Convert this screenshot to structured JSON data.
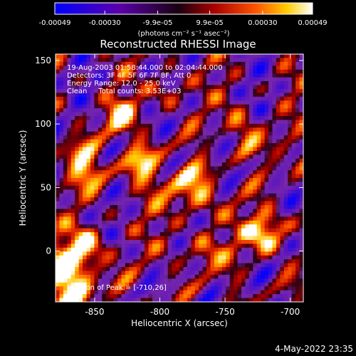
{
  "colorbar": {
    "tick_labels": [
      "-0.00049",
      "-0.00030",
      "-9.9e-05",
      "9.9e-05",
      "0.00030",
      "0.00049"
    ],
    "tick_values": [
      -0.00049,
      -0.0003,
      -9.9e-05,
      9.9e-05,
      0.0003,
      0.00049
    ],
    "range": [
      -0.00049,
      0.00049
    ],
    "units": "(photons cm⁻² s⁻¹ asec⁻²)",
    "colors": [
      "#0000ff",
      "#5a00aa",
      "#2a0010",
      "#aa0000",
      "#ff5500",
      "#ffcc00",
      "#ffffff"
    ]
  },
  "chart_data": {
    "type": "heatmap",
    "title": "Reconstructed RHESSI Image",
    "xlabel": "Heliocentric X (arcsec)",
    "ylabel": "Heliocentric Y (arcsec)",
    "xlim": [
      -880,
      -690
    ],
    "ylim": [
      -40,
      155
    ],
    "xticks": [
      -850,
      -800,
      -750,
      -700
    ],
    "yticks": [
      0,
      50,
      100,
      150
    ],
    "xtick_labels": [
      "-850",
      "-800",
      "-750",
      "-700"
    ],
    "ytick_labels": [
      "0",
      "50",
      "100",
      "150"
    ],
    "peak": {
      "x": -710,
      "y": 26
    },
    "annotations": [
      "19-Aug-2003 01:58:44.000 to 02:04:44.000",
      "Detectors: 3F 4F 5F 6F 7F 8F, Att 0",
      "Energy Range: 12.0 - 25.0 keV",
      "Clean     Total counts: 3.53E+03",
      "Position of Peak = [-710,26]"
    ]
  },
  "footer": {
    "timestamp": "4-May-2022 23:35"
  }
}
